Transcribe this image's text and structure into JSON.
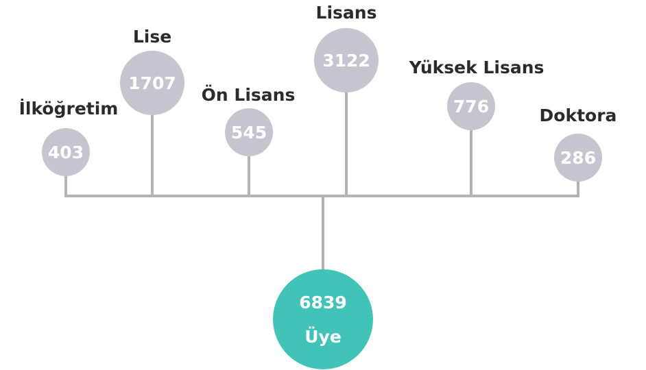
{
  "nodes": [
    {
      "label": "İlköğretim",
      "value": 403
    },
    {
      "label": "Lise",
      "value": 1707
    },
    {
      "label": "Ön Lisans",
      "value": 545
    },
    {
      "label": "Lisans",
      "value": 3122
    },
    {
      "label": "Yüksek Lisans",
      "value": 776
    },
    {
      "label": "Doktora",
      "value": 286
    }
  ],
  "total": {
    "value": 6839,
    "label": "Üye"
  }
}
